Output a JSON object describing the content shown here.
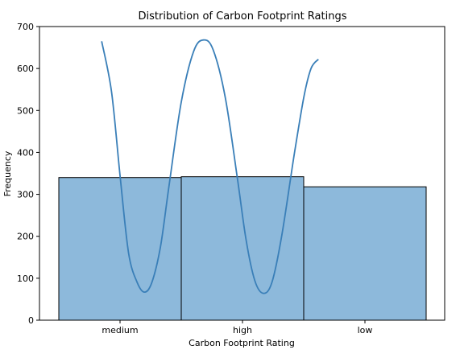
{
  "chart_data": {
    "type": "bar",
    "title": "Distribution of Carbon Footprint Ratings",
    "xlabel": "Carbon Footprint Rating",
    "ylabel": "Frequency",
    "categories": [
      "medium",
      "high",
      "low"
    ],
    "values": [
      340,
      342,
      318
    ],
    "ylim": [
      0,
      700
    ],
    "yticks": [
      0,
      100,
      200,
      300,
      400,
      500,
      600,
      700
    ],
    "grid": false,
    "bar_color": "#8db9db",
    "bar_edge_color": "#000000",
    "kde": {
      "color": "#3a7fb8",
      "points": [
        {
          "x": -0.15,
          "y": 665
        },
        {
          "x": -0.07,
          "y": 545
        },
        {
          "x": 0.0,
          "y": 345
        },
        {
          "x": 0.07,
          "y": 160
        },
        {
          "x": 0.14,
          "y": 90
        },
        {
          "x": 0.2,
          "y": 67
        },
        {
          "x": 0.26,
          "y": 90
        },
        {
          "x": 0.33,
          "y": 175
        },
        {
          "x": 0.4,
          "y": 320
        },
        {
          "x": 0.5,
          "y": 520
        },
        {
          "x": 0.6,
          "y": 640
        },
        {
          "x": 0.68,
          "y": 668
        },
        {
          "x": 0.76,
          "y": 645
        },
        {
          "x": 0.86,
          "y": 530
        },
        {
          "x": 0.96,
          "y": 335
        },
        {
          "x": 1.03,
          "y": 190
        },
        {
          "x": 1.1,
          "y": 95
        },
        {
          "x": 1.17,
          "y": 64
        },
        {
          "x": 1.24,
          "y": 90
        },
        {
          "x": 1.32,
          "y": 200
        },
        {
          "x": 1.42,
          "y": 390
        },
        {
          "x": 1.5,
          "y": 530
        },
        {
          "x": 1.56,
          "y": 600
        },
        {
          "x": 1.62,
          "y": 622
        }
      ]
    }
  }
}
